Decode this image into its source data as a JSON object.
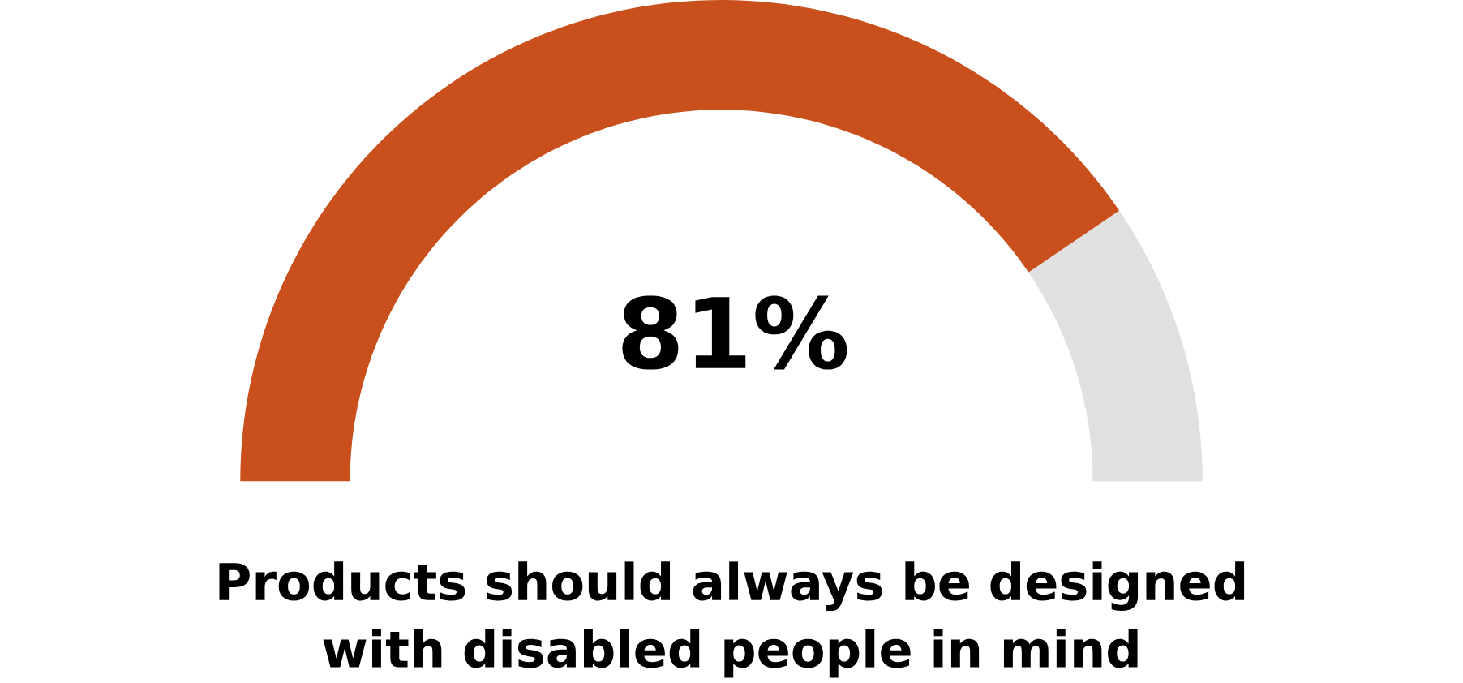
{
  "chart_data": {
    "type": "donut",
    "title": "Products should always be designed with disabled people in mind",
    "categories": [
      null,
      null
    ],
    "values": [
      81,
      19
    ],
    "colors": [
      "#c9501c",
      "#e0e0e0"
    ],
    "value_labels": [
      "81%",
      null
    ]
  }
}
